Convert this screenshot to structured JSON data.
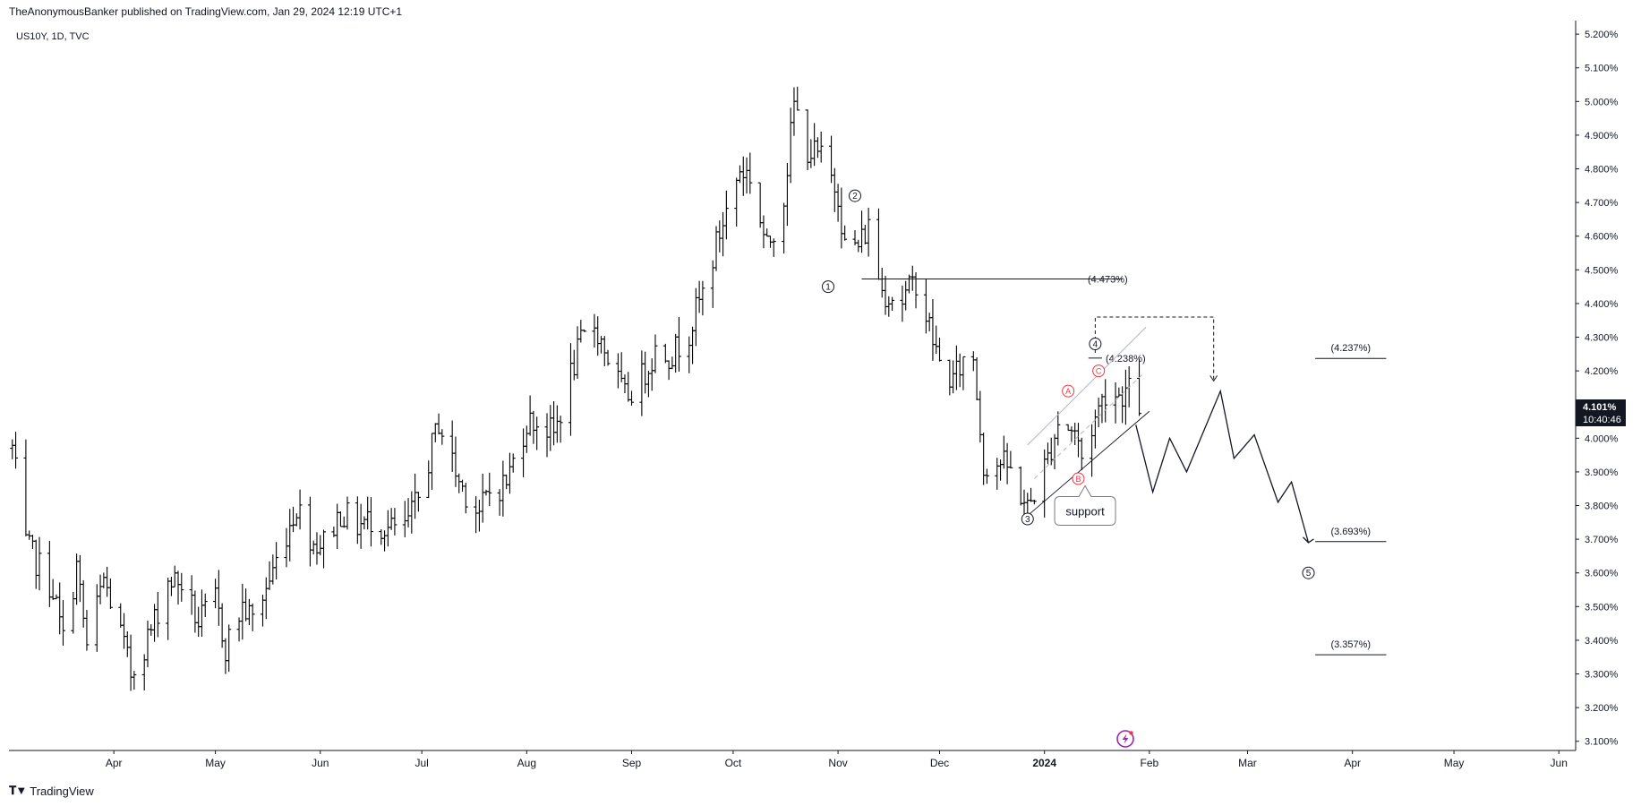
{
  "header": {
    "publish_line": "TheAnonymousBanker published on TradingView.com, Jan 29, 2024 12:19 UTC+1",
    "symbol_line": "US10Y, 1D, TVC"
  },
  "footer": {
    "brand": "TradingView",
    "logo_icon": "tradingview-logo-icon"
  },
  "price_badge": {
    "price": "4.101%",
    "countdown": "10:40:46",
    "bg": "#131722",
    "fg": "#ffffff"
  },
  "chart_data": {
    "type": "ohlc",
    "symbol": "US10Y",
    "interval": "1D",
    "source": "TVC",
    "ylim": [
      3.07,
      5.23
    ],
    "y_ticks": [
      "5.200%",
      "5.100%",
      "5.000%",
      "4.900%",
      "4.800%",
      "4.700%",
      "4.600%",
      "4.500%",
      "4.400%",
      "4.300%",
      "4.200%",
      "4.100%",
      "4.000%",
      "3.900%",
      "3.800%",
      "3.700%",
      "3.600%",
      "3.500%",
      "3.400%",
      "3.300%",
      "3.200%",
      "3.100%"
    ],
    "x_ticks": [
      {
        "label": "Apr",
        "date": "2023-04-01"
      },
      {
        "label": "May",
        "date": "2023-05-01"
      },
      {
        "label": "Jun",
        "date": "2023-06-01"
      },
      {
        "label": "Jul",
        "date": "2023-07-01"
      },
      {
        "label": "Aug",
        "date": "2023-08-01"
      },
      {
        "label": "Sep",
        "date": "2023-09-01"
      },
      {
        "label": "Oct",
        "date": "2023-10-01"
      },
      {
        "label": "Nov",
        "date": "2023-11-01"
      },
      {
        "label": "Dec",
        "date": "2023-12-01"
      },
      {
        "label": "2024",
        "date": "2024-01-01",
        "bold": true
      },
      {
        "label": "Feb",
        "date": "2024-02-01"
      },
      {
        "label": "Mar",
        "date": "2024-03-01"
      },
      {
        "label": "Apr",
        "date": "2024-04-01"
      },
      {
        "label": "May",
        "date": "2024-05-01"
      },
      {
        "label": "Jun",
        "date": "2024-06-01"
      }
    ],
    "price_path": [
      [
        "2023-03-02",
        3.97
      ],
      [
        "2023-03-06",
        3.68
      ],
      [
        "2023-03-10",
        3.62
      ],
      [
        "2023-03-14",
        3.55
      ],
      [
        "2023-03-17",
        3.4
      ],
      [
        "2023-03-21",
        3.62
      ],
      [
        "2023-03-24",
        3.38
      ],
      [
        "2023-03-29",
        3.58
      ],
      [
        "2023-04-03",
        3.42
      ],
      [
        "2023-04-06",
        3.3
      ],
      [
        "2023-04-12",
        3.43
      ],
      [
        "2023-04-17",
        3.58
      ],
      [
        "2023-04-21",
        3.57
      ],
      [
        "2023-04-26",
        3.45
      ],
      [
        "2023-05-01",
        3.52
      ],
      [
        "2023-05-04",
        3.38
      ],
      [
        "2023-05-09",
        3.5
      ],
      [
        "2023-05-12",
        3.46
      ],
      [
        "2023-05-17",
        3.58
      ],
      [
        "2023-05-22",
        3.72
      ],
      [
        "2023-05-25",
        3.8
      ],
      [
        "2023-05-30",
        3.69
      ],
      [
        "2023-06-02",
        3.69
      ],
      [
        "2023-06-07",
        3.78
      ],
      [
        "2023-06-12",
        3.74
      ],
      [
        "2023-06-16",
        3.76
      ],
      [
        "2023-06-21",
        3.73
      ],
      [
        "2023-06-26",
        3.73
      ],
      [
        "2023-06-30",
        3.82
      ],
      [
        "2023-07-06",
        4.05
      ],
      [
        "2023-07-12",
        3.87
      ],
      [
        "2023-07-18",
        3.78
      ],
      [
        "2023-07-21",
        3.84
      ],
      [
        "2023-07-26",
        3.87
      ],
      [
        "2023-08-01",
        4.05
      ],
      [
        "2023-08-04",
        4.05
      ],
      [
        "2023-08-09",
        4.01
      ],
      [
        "2023-08-14",
        4.19
      ],
      [
        "2023-08-17",
        4.28
      ],
      [
        "2023-08-21",
        4.34
      ],
      [
        "2023-08-25",
        4.24
      ],
      [
        "2023-08-30",
        4.12
      ],
      [
        "2023-09-04",
        4.18
      ],
      [
        "2023-09-08",
        4.26
      ],
      [
        "2023-09-13",
        4.25
      ],
      [
        "2023-09-18",
        4.32
      ],
      [
        "2023-09-22",
        4.43
      ],
      [
        "2023-09-27",
        4.61
      ],
      [
        "2023-10-03",
        4.8
      ],
      [
        "2023-10-06",
        4.78
      ],
      [
        "2023-10-11",
        4.56
      ],
      [
        "2023-10-16",
        4.72
      ],
      [
        "2023-10-19",
        4.99
      ],
      [
        "2023-10-23",
        4.86
      ],
      [
        "2023-10-27",
        4.83
      ],
      [
        "2023-11-01",
        4.73
      ],
      [
        "2023-11-03",
        4.57
      ],
      [
        "2023-11-07",
        4.57
      ],
      [
        "2023-11-10",
        4.63
      ],
      [
        "2023-11-14",
        4.44
      ],
      [
        "2023-11-20",
        4.41
      ],
      [
        "2023-11-24",
        4.47
      ],
      [
        "2023-11-28",
        4.33
      ],
      [
        "2023-12-01",
        4.22
      ],
      [
        "2023-12-05",
        4.17
      ],
      [
        "2023-12-08",
        4.23
      ],
      [
        "2023-12-11",
        4.24
      ],
      [
        "2023-12-14",
        3.92
      ],
      [
        "2023-12-19",
        3.93
      ],
      [
        "2023-12-22",
        3.9
      ],
      [
        "2023-12-27",
        3.79
      ],
      [
        "2024-01-02",
        3.94
      ],
      [
        "2024-01-05",
        4.05
      ],
      [
        "2024-01-10",
        4.02
      ],
      [
        "2024-01-12",
        3.94
      ],
      [
        "2024-01-16",
        4.06
      ],
      [
        "2024-01-19",
        4.14
      ],
      [
        "2024-01-23",
        4.13
      ],
      [
        "2024-01-26",
        4.14
      ],
      [
        "2024-01-29",
        4.1
      ]
    ],
    "levels": [
      {
        "label": "(4.473%)",
        "value": 4.473
      },
      {
        "label": "(4.238%)",
        "value": 4.238
      },
      {
        "label": "(4.237%)",
        "value": 4.237
      },
      {
        "label": "(3.693%)",
        "value": 3.693
      },
      {
        "label": "(3.357%)",
        "value": 3.357
      }
    ],
    "wave_labels": [
      {
        "label": "1",
        "date": "2023-11-06",
        "value": 4.45
      },
      {
        "label": "2",
        "date": "2023-11-06",
        "value": 4.72
      },
      {
        "label": "3",
        "date": "2023-12-27",
        "value": 3.76
      },
      {
        "label": "4",
        "date": "2024-01-16",
        "value": 4.28
      },
      {
        "label": "5",
        "date": "2024-03-19",
        "value": 3.6
      }
    ],
    "abc_labels": [
      {
        "label": "A",
        "date": "2024-01-08",
        "value": 4.14
      },
      {
        "label": "B",
        "date": "2024-01-11",
        "value": 3.88
      },
      {
        "label": "C",
        "date": "2024-01-17",
        "value": 4.2
      }
    ],
    "annotation": {
      "text": "support",
      "date": "2024-01-13",
      "value": 3.8
    },
    "projection": [
      [
        "2024-01-28",
        4.04
      ],
      [
        "2024-02-02",
        3.84
      ],
      [
        "2024-02-07",
        4.0
      ],
      [
        "2024-02-12",
        3.9
      ],
      [
        "2024-02-22",
        4.14
      ],
      [
        "2024-02-26",
        3.94
      ],
      [
        "2024-03-03",
        4.01
      ],
      [
        "2024-03-10",
        3.81
      ],
      [
        "2024-03-14",
        3.87
      ],
      [
        "2024-03-19",
        3.69
      ]
    ],
    "channel": {
      "upper": [
        [
          "2023-12-27",
          3.98
        ],
        [
          "2024-01-31",
          4.33
        ]
      ],
      "lower": [
        [
          "2023-12-27",
          3.77
        ],
        [
          "2024-02-01",
          4.08
        ]
      ],
      "mid": [
        [
          "2023-12-29",
          3.88
        ],
        [
          "2024-01-30",
          4.19
        ]
      ]
    },
    "dashed_target": {
      "from_date": "2024-01-16",
      "to_date": "2024-02-20",
      "top": 4.36,
      "bottom": 4.17
    }
  }
}
